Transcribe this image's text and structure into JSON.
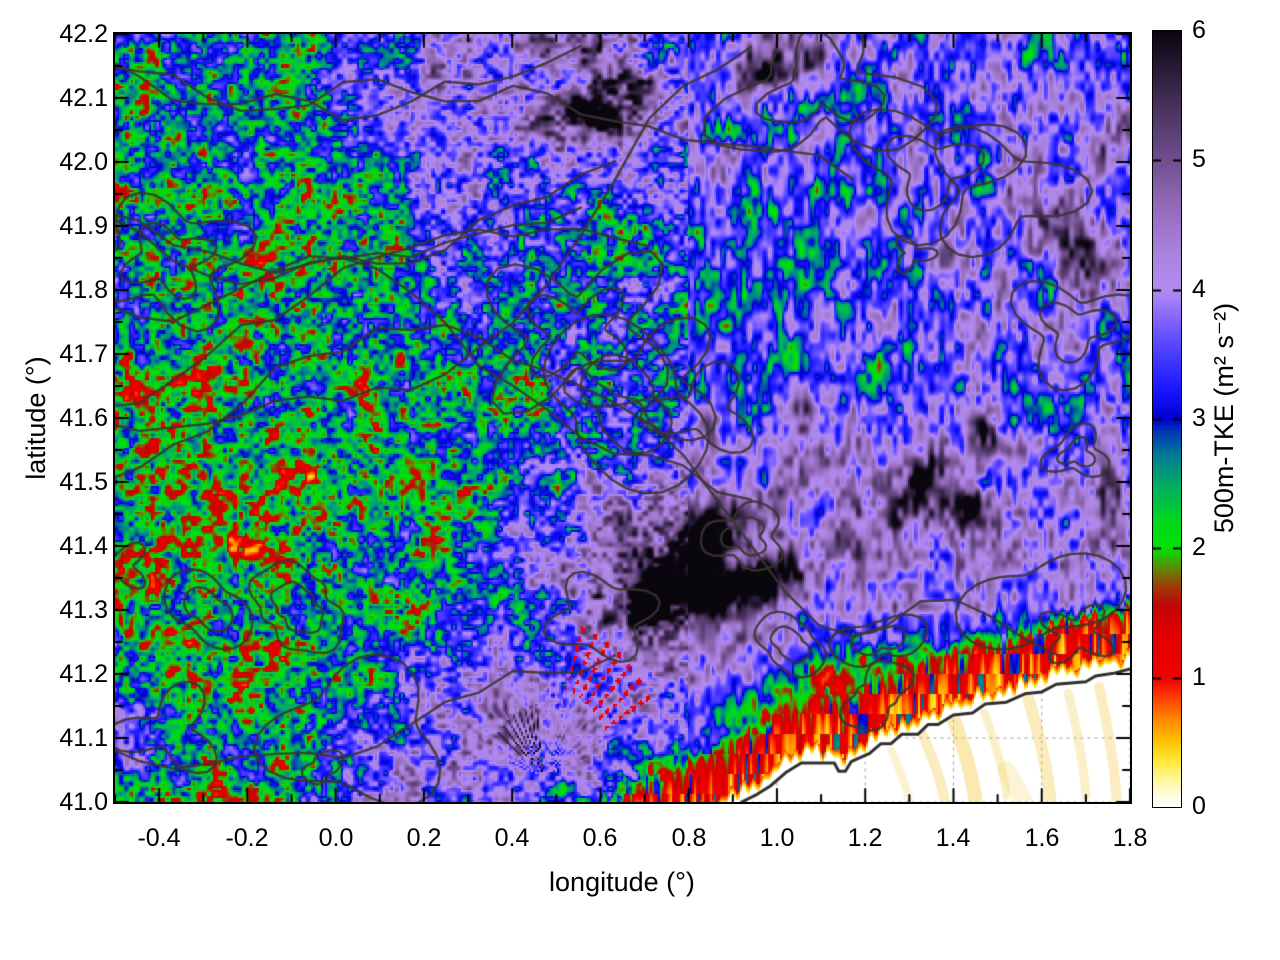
{
  "figure": {
    "background": "#ffffff"
  },
  "axes": {
    "x": {
      "title": "longitude (°)",
      "tick_labels": [
        "-0.4",
        "-0.2",
        "0.0",
        "0.2",
        "0.4",
        "0.6",
        "0.8",
        "1.0",
        "1.2",
        "1.4",
        "1.6",
        "1.8"
      ],
      "major_ticks": [
        -0.4,
        -0.2,
        0.0,
        0.2,
        0.4,
        0.6,
        0.8,
        1.0,
        1.2,
        1.4,
        1.6,
        1.8
      ],
      "minor_step": 0.1
    },
    "y": {
      "title": "latitude (°)",
      "tick_labels": [
        "41.0",
        "41.1",
        "41.2",
        "41.3",
        "41.4",
        "41.5",
        "41.6",
        "41.7",
        "41.8",
        "41.9",
        "42.0",
        "42.1",
        "42.2"
      ],
      "major_ticks": [
        41.0,
        41.1,
        41.2,
        41.3,
        41.4,
        41.5,
        41.6,
        41.7,
        41.8,
        41.9,
        42.0,
        42.1,
        42.2
      ],
      "minor_step": 0.05
    }
  },
  "colorbar": {
    "title": "500m-TKE (m² s⁻²)",
    "tick_labels": [
      "0",
      "1",
      "2",
      "3",
      "4",
      "5",
      "6"
    ],
    "ticks": [
      0,
      1,
      2,
      3,
      4,
      5,
      6
    ],
    "min": 0,
    "max": 6
  },
  "chart_data": {
    "type": "heatmap",
    "xlabel": "longitude (°)",
    "ylabel": "latitude (°)",
    "colorbar_label": "500m-TKE (m² s⁻²)",
    "xlim": [
      -0.5,
      1.8
    ],
    "ylim": [
      41.0,
      42.2
    ],
    "clim": [
      0,
      6
    ],
    "grid_on": true,
    "palette_stops": [
      [
        0.0,
        "#ffffff"
      ],
      [
        0.08,
        "#fffbe0"
      ],
      [
        0.2,
        "#fff7a0"
      ],
      [
        0.35,
        "#ffe93c"
      ],
      [
        0.5,
        "#ffc400"
      ],
      [
        0.65,
        "#ff9000"
      ],
      [
        0.8,
        "#ff5000"
      ],
      [
        0.95,
        "#f81000"
      ],
      [
        1.0,
        "#f00000"
      ],
      [
        1.35,
        "#e00000"
      ],
      [
        1.55,
        "#c00504"
      ],
      [
        1.7,
        "#9c3a08"
      ],
      [
        1.82,
        "#6f7a04"
      ],
      [
        1.92,
        "#2fb702"
      ],
      [
        2.0,
        "#00e400"
      ],
      [
        2.2,
        "#00d81c"
      ],
      [
        2.45,
        "#00b35a"
      ],
      [
        2.7,
        "#00808f"
      ],
      [
        2.9,
        "#0038b4"
      ],
      [
        3.0,
        "#0000cf"
      ],
      [
        3.2,
        "#1414ff"
      ],
      [
        3.5,
        "#4a3cff"
      ],
      [
        3.75,
        "#7e62ff"
      ],
      [
        4.0,
        "#b38cf2"
      ],
      [
        4.3,
        "#a981dd"
      ],
      [
        4.7,
        "#8f68b4"
      ],
      [
        5.0,
        "#6f4f8e"
      ],
      [
        5.4,
        "#4a3360"
      ],
      [
        5.7,
        "#2a1c38"
      ],
      [
        6.0,
        "#0a060e"
      ]
    ],
    "tke_grid": {
      "lon0": -0.5,
      "dlon": 0.1,
      "lat0": 42.2,
      "dlat": -0.1,
      "values": [
        [
          2.7,
          2.6,
          2.6,
          2.7,
          2.8,
          3.1,
          3.4,
          3.8,
          4.1,
          4.3,
          4.2,
          4.4,
          4.0,
          3.6,
          3.6,
          3.9,
          4.1,
          3.8,
          3.5,
          3.4,
          3.6,
          3.8,
          3.5,
          3.2
        ],
        [
          2.6,
          2.5,
          2.5,
          2.6,
          2.8,
          3.0,
          3.5,
          4.0,
          4.3,
          4.1,
          3.8,
          4.2,
          4.4,
          4.0,
          3.6,
          3.4,
          3.5,
          3.3,
          3.5,
          3.7,
          4.0,
          3.8,
          3.5,
          3.3
        ],
        [
          2.5,
          2.4,
          2.4,
          2.5,
          2.7,
          2.9,
          3.2,
          3.7,
          4.0,
          3.8,
          3.5,
          3.3,
          3.5,
          3.7,
          3.4,
          3.2,
          3.3,
          3.5,
          3.7,
          3.6,
          3.4,
          3.6,
          3.8,
          3.6
        ],
        [
          2.4,
          2.4,
          2.3,
          2.4,
          2.6,
          2.8,
          3.0,
          3.2,
          3.4,
          3.2,
          3.0,
          3.1,
          3.2,
          3.4,
          3.2,
          3.1,
          3.2,
          3.4,
          3.6,
          3.8,
          3.7,
          3.9,
          4.1,
          3.8
        ],
        [
          2.4,
          2.3,
          2.3,
          2.4,
          2.5,
          2.6,
          2.8,
          3.0,
          3.1,
          2.9,
          2.8,
          3.0,
          3.1,
          3.2,
          3.1,
          3.2,
          3.4,
          3.6,
          3.4,
          3.6,
          3.8,
          3.7,
          3.9,
          3.7
        ],
        [
          2.3,
          2.3,
          2.2,
          2.3,
          2.4,
          2.5,
          2.6,
          2.8,
          2.9,
          2.8,
          2.8,
          3.0,
          3.0,
          3.1,
          3.2,
          3.4,
          3.6,
          3.4,
          3.3,
          3.5,
          3.6,
          3.8,
          3.6,
          3.5
        ],
        [
          2.3,
          2.2,
          2.2,
          2.2,
          2.3,
          2.4,
          2.5,
          2.6,
          2.7,
          2.8,
          2.9,
          3.1,
          3.2,
          3.4,
          3.6,
          3.8,
          3.6,
          3.5,
          3.6,
          3.8,
          3.6,
          3.5,
          3.7,
          3.8
        ],
        [
          2.2,
          2.2,
          2.1,
          2.2,
          2.3,
          2.3,
          2.4,
          2.5,
          2.6,
          2.8,
          3.1,
          3.5,
          3.9,
          4.2,
          4.0,
          3.8,
          4.0,
          4.2,
          4.1,
          3.9,
          4.0,
          4.2,
          4.0,
          3.8
        ],
        [
          2.2,
          2.1,
          2.1,
          2.1,
          2.2,
          2.3,
          2.4,
          2.5,
          2.7,
          3.1,
          3.6,
          4.4,
          5.0,
          5.1,
          4.5,
          4.1,
          4.3,
          4.6,
          4.4,
          4.2,
          4.4,
          4.5,
          4.2,
          4.0
        ],
        [
          2.3,
          2.2,
          2.1,
          2.2,
          2.2,
          2.3,
          2.4,
          2.6,
          2.9,
          3.4,
          4.0,
          4.8,
          5.1,
          4.7,
          4.2,
          3.9,
          4.1,
          4.2,
          4.0,
          3.7,
          3.5,
          3.7,
          3.8,
          3.6
        ],
        [
          2.4,
          2.3,
          2.2,
          2.2,
          2.3,
          2.5,
          3.0,
          3.6,
          3.9,
          3.7,
          3.5,
          3.7,
          4.0,
          4.2,
          3.8,
          3.1,
          2.2,
          1.4,
          1.1,
          1.0,
          1.0,
          1.0,
          1.0,
          0.9
        ],
        [
          3.3,
          2.9,
          2.5,
          2.3,
          2.5,
          3.1,
          3.7,
          4.0,
          3.9,
          3.7,
          3.5,
          3.7,
          3.9,
          3.5,
          2.1,
          1.1,
          0.5,
          0.1,
          0.0,
          0.0,
          0.0,
          0.0,
          0.1,
          0.2
        ],
        [
          2.9,
          2.6,
          2.4,
          2.4,
          2.7,
          3.3,
          3.9,
          3.9,
          3.7,
          3.5,
          3.3,
          2.9,
          1.5,
          0.7,
          0.1,
          0.0,
          0.0,
          0.0,
          0.0,
          0.0,
          0.0,
          0.0,
          0.0,
          0.0
        ]
      ]
    },
    "hotspots": [
      {
        "lon": -0.47,
        "lat": 41.12,
        "rlon": 0.07,
        "rlat": 0.06,
        "amp": 1.2
      },
      {
        "lon": -0.45,
        "lat": 41.77,
        "rlon": 0.05,
        "rlat": 0.04,
        "amp": 0.9
      },
      {
        "lon": 0.45,
        "lat": 41.1,
        "rlon": 0.14,
        "rlat": 0.08,
        "amp": 1.0
      }
    ],
    "darkspots": [
      {
        "lon": 0.57,
        "lat": 42.07,
        "rlon": 0.1,
        "rlat": 0.035,
        "amp": 2.2
      },
      {
        "lon": 0.67,
        "lat": 42.12,
        "rlon": 0.06,
        "rlat": 0.03,
        "amp": 1.6
      },
      {
        "lon": 0.97,
        "lat": 42.14,
        "rlon": 0.07,
        "rlat": 0.04,
        "amp": 2.0
      },
      {
        "lon": 1.08,
        "lat": 42.17,
        "rlon": 0.05,
        "rlat": 0.03,
        "amp": 1.6
      },
      {
        "lon": 0.5,
        "lat": 42.17,
        "rlon": 0.05,
        "rlat": 0.03,
        "amp": 1.4
      },
      {
        "lon": 1.62,
        "lat": 41.9,
        "rlon": 0.08,
        "rlat": 0.06,
        "amp": 1.5
      },
      {
        "lon": 1.72,
        "lat": 41.84,
        "rlon": 0.05,
        "rlat": 0.05,
        "amp": 1.3
      },
      {
        "lon": 1.78,
        "lat": 42.05,
        "rlon": 0.04,
        "rlat": 0.05,
        "amp": 1.2
      },
      {
        "lon": 0.78,
        "lat": 41.34,
        "rlon": 0.09,
        "rlat": 0.05,
        "amp": 2.2
      },
      {
        "lon": 0.9,
        "lat": 41.33,
        "rlon": 0.08,
        "rlat": 0.05,
        "amp": 2.4
      },
      {
        "lon": 1.0,
        "lat": 41.35,
        "rlon": 0.06,
        "rlat": 0.04,
        "amp": 1.8
      },
      {
        "lon": 0.85,
        "lat": 41.43,
        "rlon": 0.07,
        "rlat": 0.04,
        "amp": 1.8
      },
      {
        "lon": 0.97,
        "lat": 41.46,
        "rlon": 0.05,
        "rlat": 0.035,
        "amp": 1.6
      },
      {
        "lon": 0.7,
        "lat": 41.3,
        "rlon": 0.05,
        "rlat": 0.04,
        "amp": 1.6
      },
      {
        "lon": 1.33,
        "lat": 41.5,
        "rlon": 0.06,
        "rlat": 0.05,
        "amp": 1.9
      },
      {
        "lon": 1.43,
        "lat": 41.46,
        "rlon": 0.05,
        "rlat": 0.05,
        "amp": 1.7
      },
      {
        "lon": 1.47,
        "lat": 41.57,
        "rlon": 0.05,
        "rlat": 0.04,
        "amp": 1.5
      },
      {
        "lon": 1.75,
        "lat": 41.47,
        "rlon": 0.05,
        "rlat": 0.06,
        "amp": 1.5
      },
      {
        "lon": 1.07,
        "lat": 41.62,
        "rlon": 0.05,
        "rlat": 0.04,
        "amp": 1.2
      }
    ],
    "fan": {
      "lon": 0.47,
      "lat": 41.04,
      "rmax": 0.3,
      "nrays": 26
    },
    "coastline": [
      [
        0.92,
        41.0
      ],
      [
        0.955,
        41.012
      ],
      [
        0.985,
        41.025
      ],
      [
        1.02,
        41.046
      ],
      [
        1.055,
        41.061
      ],
      [
        1.13,
        41.061
      ],
      [
        1.14,
        41.048
      ],
      [
        1.155,
        41.048
      ],
      [
        1.168,
        41.063
      ],
      [
        1.21,
        41.076
      ],
      [
        1.235,
        41.091
      ],
      [
        1.258,
        41.091
      ],
      [
        1.283,
        41.106
      ],
      [
        1.32,
        41.106
      ],
      [
        1.342,
        41.121
      ],
      [
        1.365,
        41.121
      ],
      [
        1.4,
        41.136
      ],
      [
        1.443,
        41.139
      ],
      [
        1.472,
        41.153
      ],
      [
        1.52,
        41.156
      ],
      [
        1.562,
        41.169
      ],
      [
        1.6,
        41.172
      ],
      [
        1.633,
        41.184
      ],
      [
        1.7,
        41.188
      ],
      [
        1.722,
        41.197
      ],
      [
        1.763,
        41.201
      ],
      [
        1.8,
        41.208
      ]
    ],
    "sea": {
      "fill": "#ffffff",
      "grid_color": "#999999",
      "streak_color": "#f0c020",
      "streaks": [
        {
          "x0": 1.3,
          "y0": 41.0,
          "x1": 1.26,
          "y1": 41.08,
          "w": 8,
          "a": 0.2
        },
        {
          "x0": 1.38,
          "y0": 41.0,
          "x1": 1.32,
          "y1": 41.12,
          "w": 10,
          "a": 0.3
        },
        {
          "x0": 1.45,
          "y0": 41.0,
          "x1": 1.4,
          "y1": 41.13,
          "w": 14,
          "a": 0.35
        },
        {
          "x0": 1.52,
          "y0": 41.01,
          "x1": 1.47,
          "y1": 41.14,
          "w": 8,
          "a": 0.25
        },
        {
          "x0": 1.56,
          "y0": 41.0,
          "x1": 1.52,
          "y1": 41.05,
          "w": 18,
          "a": 0.18
        },
        {
          "x0": 1.62,
          "y0": 41.0,
          "x1": 1.57,
          "y1": 41.16,
          "w": 12,
          "a": 0.3
        },
        {
          "x0": 1.7,
          "y0": 41.01,
          "x1": 1.66,
          "y1": 41.17,
          "w": 9,
          "a": 0.25
        },
        {
          "x0": 1.77,
          "y0": 41.0,
          "x1": 1.73,
          "y1": 41.18,
          "w": 10,
          "a": 0.28
        }
      ]
    },
    "contour_overlay": {
      "color": "rgba(58,52,48,0.88)",
      "coast_color": "#32302e",
      "line_width": 2.4,
      "seed": 7,
      "blobs": 24,
      "open_lines": 9
    },
    "noise_seed": 13
  }
}
